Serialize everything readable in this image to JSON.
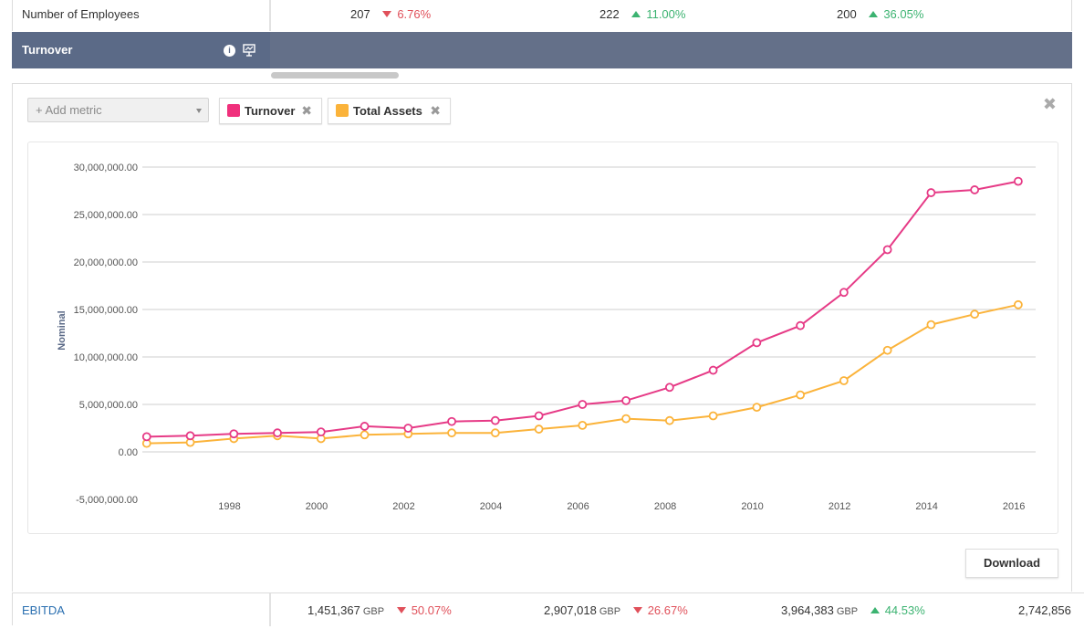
{
  "top_row": {
    "label": "Number of Employees",
    "values": [
      {
        "value": "207",
        "change": "6.76%",
        "direction": "down"
      },
      {
        "value": "222",
        "change": "11.00%",
        "direction": "up"
      },
      {
        "value": "200",
        "change": "36.05%",
        "direction": "up"
      }
    ]
  },
  "turnover_row": {
    "label": "Turnover",
    "info_icon": "info-icon",
    "chart_icon": "chart-icon"
  },
  "metric_panel": {
    "add_metric_placeholder": "+ Add metric",
    "tags": [
      {
        "label": "Turnover",
        "color": "#f0307c"
      },
      {
        "label": "Total Assets",
        "color": "#fbb33a"
      }
    ],
    "close_glyph": "✖",
    "download_label": "Download"
  },
  "chart_data": {
    "type": "line",
    "ylabel": "Nominal",
    "ylim": [
      -5000000,
      30000000
    ],
    "y_ticks": [
      "30,000,000.00",
      "25,000,000.00",
      "20,000,000.00",
      "15,000,000.00",
      "10,000,000.00",
      "5,000,000.00",
      "0.00",
      "-5,000,000.00"
    ],
    "y_tick_values": [
      30000000,
      25000000,
      20000000,
      15000000,
      10000000,
      5000000,
      0,
      -5000000
    ],
    "x_ticks": [
      "1998",
      "2000",
      "2002",
      "2004",
      "2006",
      "2008",
      "2010",
      "2012",
      "2014",
      "2016"
    ],
    "x_tick_values": [
      1998,
      2000,
      2002,
      2004,
      2006,
      2008,
      2010,
      2012,
      2014,
      2016
    ],
    "xlim": [
      1996,
      2016.5
    ],
    "x": [
      1996.1,
      1997.1,
      1998.1,
      1999.1,
      2000.1,
      2001.1,
      2002.1,
      2003.1,
      2004.1,
      2005.1,
      2006.1,
      2007.1,
      2008.1,
      2009.1,
      2010.1,
      2011.1,
      2012.1,
      2013.1,
      2014.1,
      2015.1,
      2016.1
    ],
    "series": [
      {
        "name": "Turnover",
        "color": "#e63a86",
        "values": [
          1600000,
          1700000,
          1900000,
          2000000,
          2100000,
          2700000,
          2500000,
          3200000,
          3300000,
          3800000,
          5000000,
          5400000,
          6800000,
          8600000,
          11500000,
          13300000,
          16800000,
          21300000,
          27300000,
          27600000,
          28500000
        ]
      },
      {
        "name": "Total Assets",
        "color": "#fbb33a",
        "values": [
          900000,
          1000000,
          1400000,
          1700000,
          1400000,
          1800000,
          1900000,
          2000000,
          2000000,
          2400000,
          2800000,
          3500000,
          3300000,
          3800000,
          4700000,
          6000000,
          7500000,
          10700000,
          13400000,
          14500000,
          15500000
        ]
      }
    ],
    "grid": true,
    "legend": "none"
  },
  "bottom_row": {
    "label": "EBITDA",
    "values": [
      {
        "value": "1,451,367",
        "unit": "GBP",
        "change": "50.07%",
        "direction": "down"
      },
      {
        "value": "2,907,018",
        "unit": "GBP",
        "change": "26.67%",
        "direction": "down"
      },
      {
        "value": "3,964,383",
        "unit": "GBP",
        "change": "44.53%",
        "direction": "up"
      },
      {
        "value": "2,742,856",
        "unit": "",
        "change": "",
        "direction": ""
      }
    ]
  }
}
